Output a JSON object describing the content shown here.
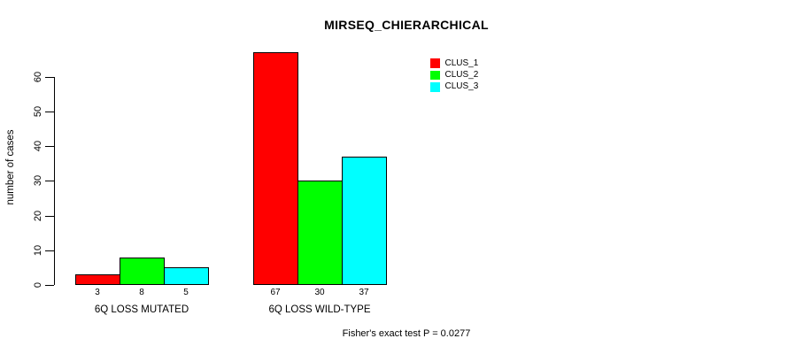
{
  "figure": {
    "background": "#FFFFFF",
    "text_color": "#000000"
  },
  "chart_data": {
    "type": "bar",
    "title": "MIRSEQ_CHIERARCHICAL",
    "ylabel": "number of cases",
    "xlabel": "",
    "ylim": [
      0,
      60
    ],
    "yticks": [
      0,
      10,
      20,
      30,
      40,
      50,
      60
    ],
    "categories": [
      "6Q LOSS MUTATED",
      "6Q LOSS WILD-TYPE"
    ],
    "series": [
      {
        "name": "CLUS_1",
        "color": "#FF0000",
        "values": [
          3,
          67
        ]
      },
      {
        "name": "CLUS_2",
        "color": "#00FF00",
        "values": [
          8,
          30
        ]
      },
      {
        "name": "CLUS_3",
        "color": "#00FFFF",
        "values": [
          5,
          37
        ]
      }
    ],
    "bar_value_labels": [
      [
        "3",
        "8",
        "5"
      ],
      [
        "67",
        "30",
        "37"
      ]
    ],
    "legend_position": "top-right",
    "grid": false,
    "annotation": "Fisher's exact test P = 0.0277"
  }
}
